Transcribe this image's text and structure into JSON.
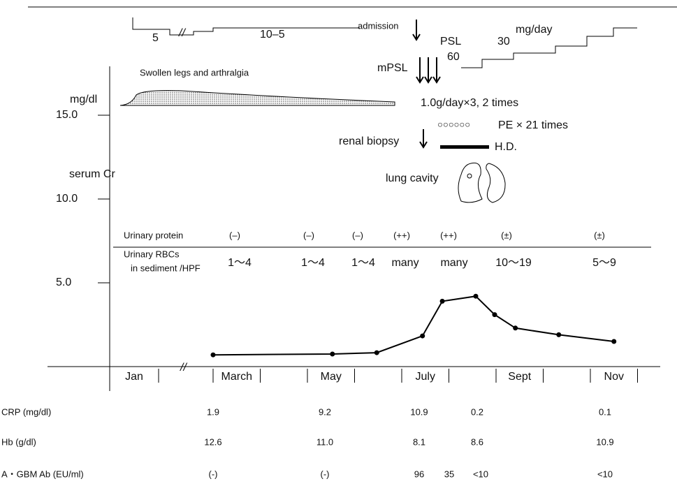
{
  "chart_data": {
    "type": "line",
    "y_unit": "mg/dl",
    "ylabel": "serum Cr",
    "ylim": [
      0,
      18
    ],
    "yticks": [
      {
        "value": 5,
        "label": "5.0"
      },
      {
        "value": 10,
        "label": "10.0"
      },
      {
        "value": 15,
        "label": "15.0"
      }
    ],
    "categories": [
      "Jan",
      "March",
      null,
      "May",
      null,
      "July",
      null,
      "Sept",
      null,
      "Nov"
    ],
    "x": [
      3.0,
      5.53,
      6.47,
      7.44,
      7.86,
      8.57,
      8.97,
      9.41,
      10.33,
      11.5
    ],
    "series": [
      {
        "color": "#000000",
        "values": [
          0.7,
          0.75,
          0.83,
          1.83,
          3.9,
          4.2,
          3.1,
          2.3,
          1.9,
          1.5
        ]
      }
    ]
  },
  "annotations": {
    "pre_dose": "5",
    "dose_taper": "10–5",
    "admission": "admission",
    "psl": "PSL",
    "psl_start": "60",
    "psl_mid": "30",
    "dose_unit": "mg/day",
    "mpsl": "mPSL",
    "mpsl_dose": "1.0g/day×3, 2 times",
    "symptoms": "Swollen legs and arthralgia",
    "pe_marks": "○○○○○○",
    "pe": "PE × 21 times",
    "renal_biopsy": "renal biopsy",
    "hd": "H.D.",
    "lung_cavity": "lung cavity"
  },
  "urinary": {
    "protein_label": "Urinary protein",
    "protein": [
      "(–)",
      "(–)",
      "(–)",
      "(++)",
      "(++)",
      "(±)",
      "(±)"
    ],
    "rbc_label": "Urinary RBCs",
    "rbc_sublabel": "in sediment /HPF",
    "rbc": [
      "1～4",
      "1～4",
      "1～4",
      "many",
      "many",
      "10～19",
      "5～9"
    ]
  },
  "table": {
    "rows": [
      {
        "label": "CRP (mg/dl)",
        "cells": [
          "1.9",
          "9.2",
          "10.9",
          "0.2",
          "0.1"
        ]
      },
      {
        "label": "Hb (g/dl)",
        "cells": [
          "12.6",
          "11.0",
          "8.1",
          "8.6",
          "10.9"
        ]
      },
      {
        "label": "A・GBM Ab (EU/ml)",
        "cells": [
          "(-)",
          "(-)",
          "96",
          "35",
          "<10",
          "<10"
        ]
      }
    ]
  }
}
